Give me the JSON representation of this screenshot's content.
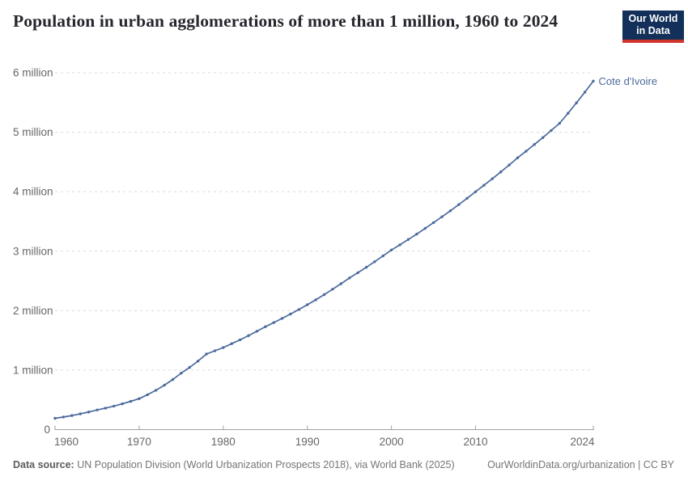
{
  "header": {
    "title": "Population in urban agglomerations of more than 1 million, 1960 to 2024",
    "logo": {
      "line1": "Our World",
      "line2": "in Data",
      "bg_color": "#123059",
      "accent_color": "#d0342c"
    }
  },
  "chart_data": {
    "type": "line",
    "title": "Population in urban agglomerations of more than 1 million, 1960 to 2024",
    "unit": "million people",
    "xlabel": "",
    "ylabel": "",
    "xlim": [
      1960,
      2024
    ],
    "ylim": [
      0,
      6
    ],
    "grid": "horizontal-dashed",
    "legend_position": "end-of-line-label",
    "xticks": [
      1960,
      1970,
      1980,
      1990,
      2000,
      2010,
      2024
    ],
    "ytick_values": [
      0,
      1,
      2,
      3,
      4,
      5,
      6
    ],
    "ytick_labels": [
      "0",
      "1 million",
      "2 million",
      "3 million",
      "4 million",
      "5 million",
      "6 million"
    ],
    "series": [
      {
        "name": "Cote d'Ivoire",
        "color": "#4C6A9C",
        "x": [
          1960,
          1961,
          1962,
          1963,
          1964,
          1965,
          1966,
          1967,
          1968,
          1969,
          1970,
          1971,
          1972,
          1973,
          1974,
          1975,
          1976,
          1977,
          1978,
          1979,
          1980,
          1981,
          1982,
          1983,
          1984,
          1985,
          1986,
          1987,
          1988,
          1989,
          1990,
          1991,
          1992,
          1993,
          1994,
          1995,
          1996,
          1997,
          1998,
          1999,
          2000,
          2001,
          2002,
          2003,
          2004,
          2005,
          2006,
          2007,
          2008,
          2009,
          2010,
          2011,
          2012,
          2013,
          2014,
          2015,
          2016,
          2017,
          2018,
          2019,
          2020,
          2021,
          2022,
          2023,
          2024
        ],
        "values": [
          0.19,
          0.212,
          0.237,
          0.265,
          0.296,
          0.33,
          0.361,
          0.396,
          0.433,
          0.475,
          0.52,
          0.587,
          0.662,
          0.747,
          0.842,
          0.95,
          1.046,
          1.153,
          1.27,
          1.325,
          1.38,
          1.444,
          1.51,
          1.58,
          1.654,
          1.73,
          1.799,
          1.87,
          1.944,
          2.02,
          2.1,
          2.183,
          2.27,
          2.36,
          2.453,
          2.55,
          2.638,
          2.729,
          2.823,
          2.92,
          3.02,
          3.107,
          3.196,
          3.288,
          3.383,
          3.48,
          3.578,
          3.679,
          3.783,
          3.89,
          4.0,
          4.108,
          4.219,
          4.333,
          4.45,
          4.57,
          4.681,
          4.794,
          4.91,
          5.029,
          5.15,
          5.319,
          5.494,
          5.674,
          5.86
        ]
      }
    ]
  },
  "colors": {
    "gridline": "#dadada",
    "axis": "#a1a1a1",
    "tick_label": "#666666",
    "title": "#26262e"
  },
  "footer": {
    "source_label": "Data source:",
    "source_text": " UN Population Division (World Urbanization Prospects 2018), via World Bank (2025)",
    "right_text": "OurWorldinData.org/urbanization | CC BY"
  }
}
